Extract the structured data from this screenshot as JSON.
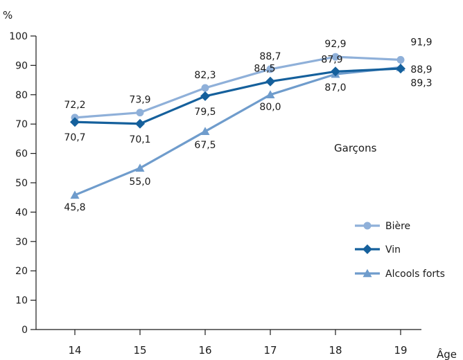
{
  "chart_data": {
    "type": "line",
    "ylabel": "%",
    "xlabel": "Âge",
    "annotation": "Garçons",
    "x": [
      14,
      15,
      16,
      17,
      18,
      19
    ],
    "x_tick_labels": [
      "14",
      "15",
      "16",
      "17",
      "18",
      "19"
    ],
    "ylim": [
      0,
      100
    ],
    "y_ticks": [
      0,
      10,
      20,
      30,
      40,
      50,
      60,
      70,
      80,
      90,
      100
    ],
    "y_tick_labels": [
      "0",
      "10",
      "20",
      "30",
      "40",
      "50",
      "60",
      "70",
      "80",
      "90",
      "100"
    ],
    "grid": false,
    "legend_position": "right",
    "series": [
      {
        "name": "Bière",
        "marker": "circle",
        "color": "#8fb0d9",
        "values": [
          72.2,
          73.9,
          82.3,
          88.7,
          92.9,
          91.9
        ],
        "labels": [
          "72,2",
          "73,9",
          "82,3",
          "88,7",
          "92,9",
          "91,9"
        ]
      },
      {
        "name": "Vin",
        "marker": "diamond",
        "color": "#15609c",
        "values": [
          70.7,
          70.1,
          79.5,
          84.5,
          87.9,
          88.9
        ],
        "labels": [
          "70,7",
          "70,1",
          "79,5",
          "84,5",
          "87,9",
          "88,9"
        ]
      },
      {
        "name": "Alcools forts",
        "marker": "triangle",
        "color": "#6f9ccc",
        "values": [
          45.8,
          55.0,
          67.5,
          80.0,
          87.0,
          89.3
        ],
        "labels": [
          "45,8",
          "55,0",
          "67,5",
          "80,0",
          "87,0",
          "89,3"
        ]
      }
    ]
  }
}
